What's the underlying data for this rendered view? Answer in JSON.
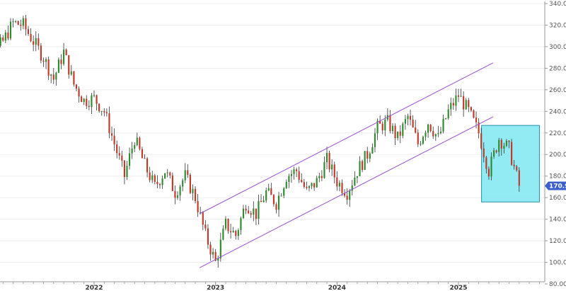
{
  "colors": {
    "up": "#2e8b2e",
    "down": "#c0392b",
    "wick": "#333333",
    "channel": "#9b4fd1",
    "highlight_fill": "#7fe8f0",
    "highlight_stroke": "#2a8ea8",
    "grid": "#eeeeee",
    "axis": "#999999",
    "price_badge": "#3a5fcd"
  },
  "chart_data": {
    "type": "candlestick",
    "title": "",
    "xlabel": "",
    "ylabel": "",
    "ylim": [
      80,
      340
    ],
    "y_ticks": [
      "80.00",
      "100.00",
      "120.00",
      "140.00",
      "160.00",
      "180.00",
      "200.00",
      "220.00",
      "240.00",
      "260.00",
      "280.00",
      "300.00",
      "320.00",
      "340.00"
    ],
    "x_ticks": [
      "2022",
      "2023",
      "2024",
      "2025"
    ],
    "x_range": [
      "2021-01",
      "2025-07"
    ],
    "last_price": "170.90",
    "grid": false,
    "anchors": [
      [
        "2021-01",
        285
      ],
      [
        "2021-02",
        265
      ],
      [
        "2021-03",
        292
      ],
      [
        "2021-04",
        305
      ],
      [
        "2021-05",
        322
      ],
      [
        "2021-06",
        320
      ],
      [
        "2021-07",
        305
      ],
      [
        "2021-08",
        290
      ],
      [
        "2021-09",
        270
      ],
      [
        "2021-10",
        295
      ],
      [
        "2021-11",
        265
      ],
      [
        "2021-12",
        250
      ],
      [
        "2022-01",
        252
      ],
      [
        "2022-02",
        240
      ],
      [
        "2022-03",
        210
      ],
      [
        "2022-04",
        180
      ],
      [
        "2022-05",
        215
      ],
      [
        "2022-06",
        190
      ],
      [
        "2022-07",
        170
      ],
      [
        "2022-08",
        185
      ],
      [
        "2022-09",
        165
      ],
      [
        "2022-10",
        180
      ],
      [
        "2022-11",
        160
      ],
      [
        "2022-12",
        125
      ],
      [
        "2023-01",
        100
      ],
      [
        "2023-02",
        135
      ],
      [
        "2023-03",
        125
      ],
      [
        "2023-04",
        155
      ],
      [
        "2023-05",
        145
      ],
      [
        "2023-06",
        165
      ],
      [
        "2023-07",
        155
      ],
      [
        "2023-08",
        180
      ],
      [
        "2023-09",
        185
      ],
      [
        "2023-10",
        165
      ],
      [
        "2023-11",
        175
      ],
      [
        "2023-12",
        195
      ],
      [
        "2024-01",
        175
      ],
      [
        "2024-02",
        165
      ],
      [
        "2024-03",
        185
      ],
      [
        "2024-04",
        200
      ],
      [
        "2024-05",
        225
      ],
      [
        "2024-06",
        230
      ],
      [
        "2024-07",
        215
      ],
      [
        "2024-08",
        235
      ],
      [
        "2024-09",
        210
      ],
      [
        "2024-10",
        230
      ],
      [
        "2024-11",
        215
      ],
      [
        "2024-12",
        240
      ],
      [
        "2025-01",
        255
      ],
      [
        "2025-02",
        240
      ],
      [
        "2025-03",
        220
      ],
      [
        "2025-04",
        185
      ],
      [
        "2025-05",
        215
      ],
      [
        "2025-06",
        205
      ],
      [
        "2025-07",
        170.9
      ]
    ],
    "channel_lines": [
      {
        "name": "",
        "start": [
          "2022-11",
          145
        ],
        "end": [
          "2025-04",
          285
        ]
      },
      {
        "name": "",
        "start": [
          "2022-11",
          95
        ],
        "end": [
          "2025-04",
          235
        ]
      }
    ],
    "highlight_box": {
      "x_start": "2025-03",
      "x_end": "2025-09",
      "y_low": 156,
      "y_high": 227
    }
  }
}
